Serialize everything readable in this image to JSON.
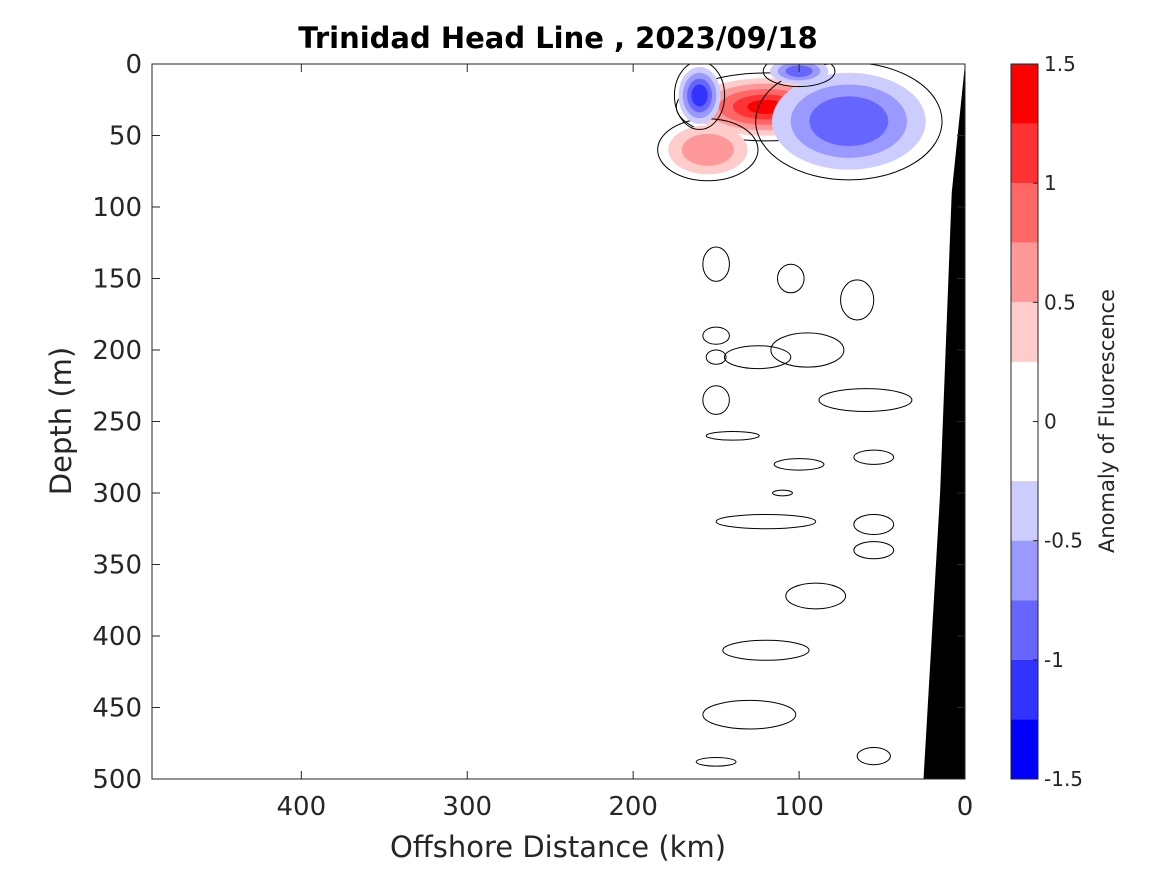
{
  "chart_data": {
    "type": "heatmap",
    "subtype": "filled contour section",
    "title": "Trinidad Head Line , 2023/09/18",
    "xlabel": "Offshore Distance (km)",
    "ylabel": "Depth (m)",
    "xlim": [
      490,
      0
    ],
    "x_reversed": true,
    "ylim": [
      0,
      500
    ],
    "y_reversed": true,
    "xticks": [
      400,
      300,
      200,
      100,
      0
    ],
    "yticks": [
      0,
      50,
      100,
      150,
      200,
      250,
      300,
      350,
      400,
      450,
      500
    ],
    "colorbar": {
      "label": "Anomaly of Fluorescence",
      "range": [
        -1.5,
        1.5
      ],
      "ticks": [
        "1.5",
        "1",
        "0.5",
        "0",
        "-0.5",
        "-1",
        "-1.5"
      ],
      "levels": [
        {
          "from": 1.25,
          "to": 1.5,
          "color": "#ff0000"
        },
        {
          "from": 1.0,
          "to": 1.25,
          "color": "#ff3333"
        },
        {
          "from": 0.75,
          "to": 1.0,
          "color": "#ff6666"
        },
        {
          "from": 0.5,
          "to": 0.75,
          "color": "#ff9999"
        },
        {
          "from": 0.25,
          "to": 0.5,
          "color": "#ffcccc"
        },
        {
          "from": -0.25,
          "to": 0.25,
          "color": "#ffffff"
        },
        {
          "from": -0.5,
          "to": -0.25,
          "color": "#ccccff"
        },
        {
          "from": -0.75,
          "to": -0.5,
          "color": "#9999ff"
        },
        {
          "from": -1.0,
          "to": -0.75,
          "color": "#6666ff"
        },
        {
          "from": -1.25,
          "to": -1.0,
          "color": "#3333ff"
        },
        {
          "from": -1.5,
          "to": -1.25,
          "color": "#0000ff"
        }
      ]
    },
    "data_coverage": {
      "x_range": [
        160,
        30
      ],
      "depth_range": [
        0,
        500
      ]
    },
    "anomaly_features": [
      {
        "x": 120,
        "depth": 30,
        "value": 1.4,
        "sign": "positive"
      },
      {
        "x": 155,
        "depth": 60,
        "value": 0.8,
        "sign": "positive"
      },
      {
        "x": 160,
        "depth": 22,
        "value": -1.3,
        "sign": "negative"
      },
      {
        "x": 70,
        "depth": 40,
        "value": -1.1,
        "sign": "negative"
      },
      {
        "x": 100,
        "depth": 5,
        "value": -1.0,
        "sign": "negative"
      }
    ],
    "bathymetry": {
      "fill_color": "#000000",
      "profile": [
        [
          0,
          0
        ],
        [
          8,
          90
        ],
        [
          15,
          300
        ],
        [
          25,
          500
        ]
      ]
    }
  }
}
